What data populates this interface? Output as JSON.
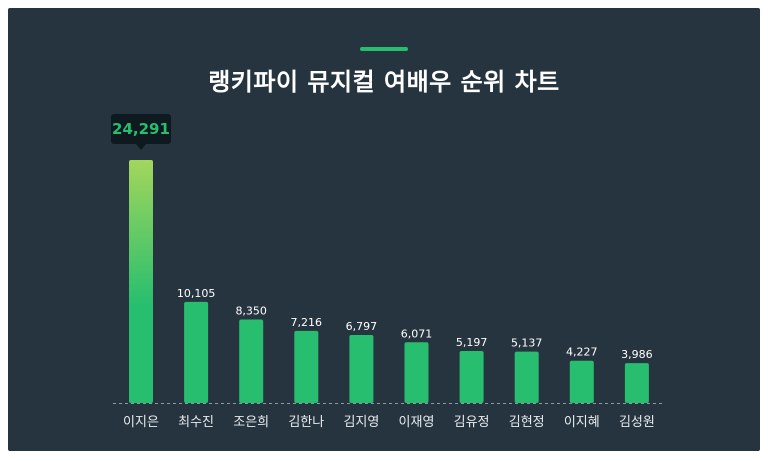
{
  "title": "랭키파이 뮤지컬 여배우 순위 차트",
  "colors": {
    "background": "#263440",
    "bar": "#27be6f",
    "bar_top_highlight": "#a3d65c",
    "accent": "#27be6f",
    "tooltip_bg": "#0f1a20"
  },
  "chart_data": {
    "type": "bar",
    "title": "랭키파이 뮤지컬 여배우 순위 차트",
    "categories": [
      "이지은",
      "최수진",
      "조은희",
      "김한나",
      "김지영",
      "이재영",
      "김유정",
      "김현정",
      "이지혜",
      "김성원"
    ],
    "values": [
      24291,
      10105,
      8350,
      7216,
      6797,
      6071,
      5197,
      5137,
      4227,
      3986
    ],
    "value_labels": [
      "24,291",
      "10,105",
      "8,350",
      "7,216",
      "6,797",
      "6,071",
      "5,197",
      "5,137",
      "4,227",
      "3,986"
    ],
    "highlight": {
      "category": "이지은",
      "label": "24,291"
    },
    "xlabel": "",
    "ylabel": "",
    "grid": false,
    "legend": "none"
  }
}
